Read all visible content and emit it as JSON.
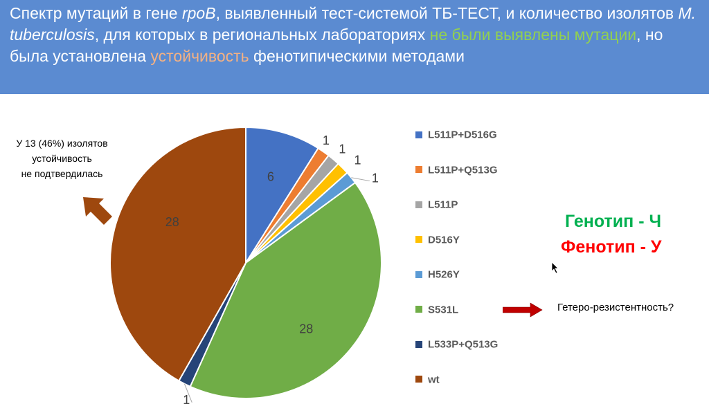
{
  "header": {
    "title_part1": "Спектр мутаций в гене ",
    "title_gene": "rpoB",
    "title_part2": ", выявленный тест-системой ТБ-ТЕСТ, и количество изолятов ",
    "title_organism": "M. tuberculosis",
    "title_part3": ", для которых в региональных лабораториях ",
    "title_green": "не были выявлены мутации",
    "title_part4": ", но была установлена ",
    "title_orange": "устойчивость",
    "title_part5": " фенотипическими методами"
  },
  "note": {
    "line1": "У 13 (46%) изолятов",
    "line2": "устойчивость",
    "line3": "не подтвердилась"
  },
  "annotations": {
    "genotype": "Генотип  - Ч",
    "phenotype": "Фенотип - У",
    "hetero": "Гетеро-резистентность?"
  },
  "colors": {
    "banner": "#5b8bd1",
    "highlight_green": "#92d050",
    "highlight_orange": "#f4b183",
    "genotype": "#00b050",
    "phenotype": "#ff0000",
    "arrow_brown": "#9e480e",
    "arrow_red": "#c00000"
  },
  "icons": [
    "brown-arrow-up-left-icon",
    "red-arrow-right-icon",
    "mouse-cursor-icon"
  ],
  "chart_data": {
    "type": "pie",
    "categories": [
      "L511P+D516G",
      "L511P+Q513G",
      "L511P",
      "D516Y",
      "H526Y",
      "S531L",
      "L533P+Q513G",
      "wt"
    ],
    "values": [
      6,
      1,
      1,
      1,
      1,
      28,
      1,
      28
    ],
    "data_labels": [
      "6",
      "1",
      "1",
      "1",
      "1",
      "28",
      "1",
      "28"
    ],
    "colors": [
      "#4472c4",
      "#ed7d31",
      "#a5a5a5",
      "#ffc000",
      "#5b9bd5",
      "#70ad47",
      "#264478",
      "#9e480e"
    ],
    "legend_position": "right"
  }
}
